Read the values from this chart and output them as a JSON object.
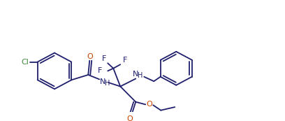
{
  "bg_color": "#ffffff",
  "line_color": "#1f1f6e",
  "atom_colors": {
    "Cl": "#3a8a3a",
    "O": "#cc4400",
    "F": "#1f1f6e",
    "N": "#1f1f6e",
    "H": "#1f1f6e",
    "C": "#1f1f6e"
  },
  "figsize": [
    4.08,
    1.73
  ],
  "dpi": 100,
  "lw": 1.3
}
